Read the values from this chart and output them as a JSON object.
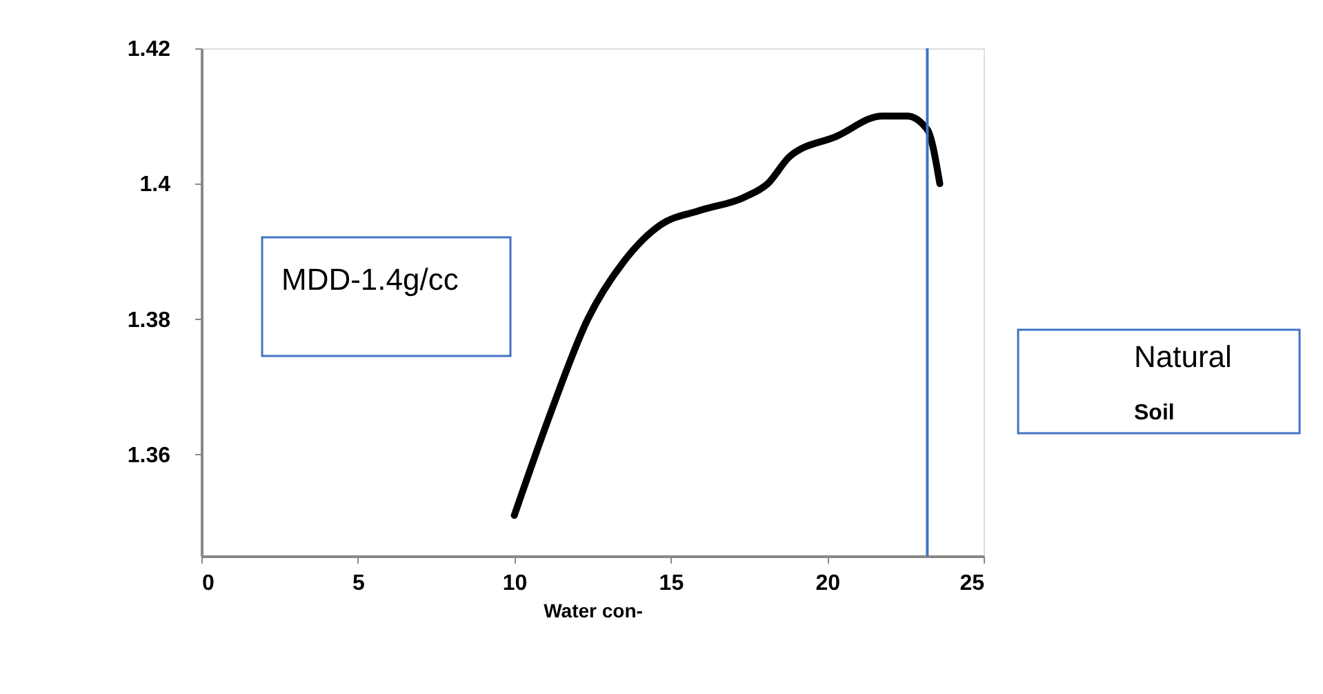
{
  "chart_data": {
    "type": "line",
    "xlabel": "Water con-",
    "x": [
      10.0,
      11.15,
      12.35,
      13.5,
      14.7,
      15.9,
      17.35,
      18.1,
      18.8,
      20.3,
      21.75,
      22.55,
      23.2,
      23.6
    ],
    "series": [
      {
        "color": "#000000",
        "values": [
          1.351,
          1.366,
          1.38,
          1.3885,
          1.394,
          1.396,
          1.398,
          1.4,
          1.404,
          1.407,
          1.41,
          1.41,
          1.408,
          1.4
        ]
      }
    ],
    "xlim": [
      0,
      25
    ],
    "xticks": [
      0,
      5,
      10,
      15,
      20,
      25
    ],
    "ylim": [
      1.345,
      1.42
    ],
    "yticks": [
      1.36,
      1.38,
      1.4,
      1.42
    ],
    "grid": false,
    "marker": "none",
    "line_style": "solid",
    "ref_lines": [
      {
        "axis": "x",
        "value": 23.2,
        "color": "#4472c4"
      }
    ],
    "annotations": [
      "MDD-1.4g/cc",
      "Natural",
      "Soil"
    ]
  }
}
